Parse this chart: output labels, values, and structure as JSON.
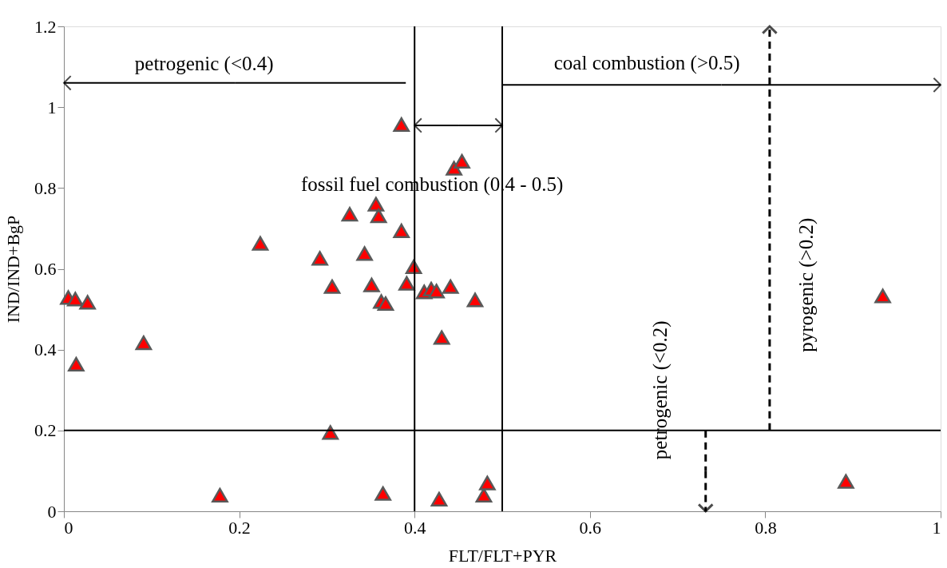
{
  "chart_data": {
    "type": "scatter",
    "xlabel": "FLT/FLT+PYR",
    "ylabel": "IND/IND+BgP",
    "xlim": [
      0,
      1
    ],
    "ylim": [
      0,
      1.2
    ],
    "xticks": [
      0,
      0.2,
      0.4,
      0.6,
      0.8,
      1
    ],
    "yticks": [
      0,
      0.2,
      0.4,
      0.6,
      0.8,
      1,
      1.2
    ],
    "marker": "triangle",
    "grid": false,
    "legend": false,
    "series": [
      {
        "color": "#ff0000",
        "x": [
          0.005,
          0.013,
          0.027,
          0.014,
          0.091,
          0.178,
          0.224,
          0.292,
          0.306,
          0.304,
          0.326,
          0.343,
          0.356,
          0.359,
          0.351,
          0.362,
          0.367,
          0.364,
          0.385,
          0.385,
          0.391,
          0.399,
          0.411,
          0.419,
          0.425,
          0.441,
          0.445,
          0.454,
          0.469,
          0.431,
          0.428,
          0.479,
          0.483,
          0.892,
          0.934
        ],
        "values": [
          0.529,
          0.525,
          0.517,
          0.364,
          0.417,
          0.04,
          0.663,
          0.626,
          0.556,
          0.195,
          0.735,
          0.638,
          0.76,
          0.731,
          0.56,
          0.519,
          0.514,
          0.044,
          0.694,
          0.957,
          0.564,
          0.605,
          0.543,
          0.55,
          0.545,
          0.556,
          0.849,
          0.866,
          0.523,
          0.43,
          0.03,
          0.04,
          0.07,
          0.074,
          0.533
        ]
      }
    ],
    "ref_lines": [
      {
        "axis": "x",
        "value": 0.4,
        "color": "#000000"
      },
      {
        "axis": "x",
        "value": 0.5,
        "color": "#000000"
      },
      {
        "axis": "y",
        "value": 0.2,
        "color": "#000000"
      }
    ],
    "annotations": [
      "petrogenic (<0.4)",
      {
        "text": "coal combustion (>0.5)",
        "x": 0.5,
        "y": 1.055
      },
      "fossil fuel combustion (0.4 - 0.5)",
      {
        "text": "petrogenic (<0.2)",
        "x": 0.732,
        "y": 0.2
      },
      {
        "text": "pyrogenic (>0.2)",
        "x": 0.805,
        "y": 0.2
      }
    ]
  }
}
